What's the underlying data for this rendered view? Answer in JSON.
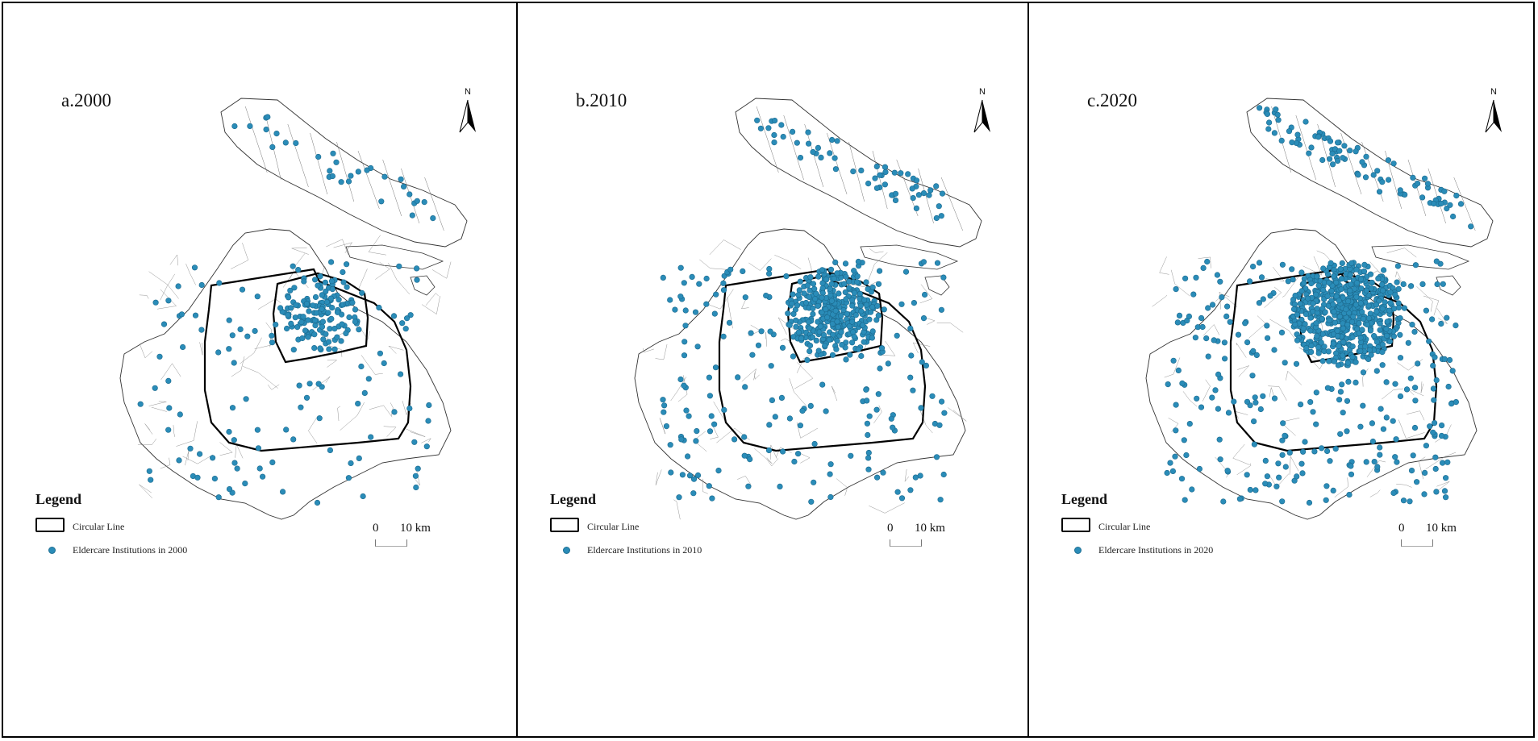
{
  "north_label": "N",
  "legend": {
    "title": "Legend",
    "ring_label": "Circular Line",
    "dot_color": "#2a8cb8"
  },
  "scale": {
    "zero": "0",
    "ten": "10 km"
  },
  "panels": [
    {
      "title": "a.2000",
      "dot_label": "Eldercare Institutions in 2000",
      "density": 0.18,
      "scatter": 1.0,
      "seed": 11
    },
    {
      "title": "b.2010",
      "dot_label": "Eldercare Institutions in 2010",
      "density": 0.55,
      "scatter": 1.0,
      "seed": 23
    },
    {
      "title": "c.2020",
      "dot_label": "Eldercare Institutions in 2020",
      "density": 1.0,
      "scatter": 1.0,
      "seed": 37
    }
  ]
}
